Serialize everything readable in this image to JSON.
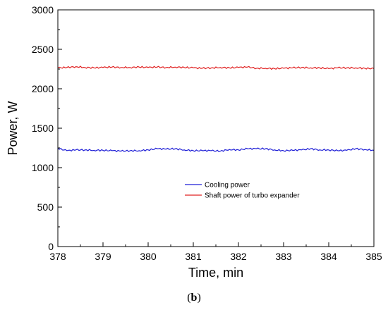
{
  "caption": {
    "open": "(",
    "letter": "b",
    "close": ")"
  },
  "chart_data": {
    "type": "line",
    "xlabel": "Time, min",
    "ylabel": "Power, W",
    "xlim": [
      378,
      385
    ],
    "ylim": [
      0,
      3000
    ],
    "xticks": [
      378,
      379,
      380,
      381,
      382,
      383,
      384,
      385
    ],
    "yticks": [
      0,
      500,
      1000,
      1500,
      2000,
      2500,
      3000
    ],
    "grid": false,
    "legend": "center-right",
    "series": [
      {
        "name": "Cooling power",
        "color": "#1f1fd6",
        "x": [
          378.0,
          378.2,
          378.4,
          378.6,
          378.8,
          379.0,
          379.2,
          379.4,
          379.6,
          379.8,
          380.0,
          380.2,
          380.4,
          380.6,
          380.8,
          381.0,
          381.2,
          381.4,
          381.6,
          381.8,
          382.0,
          382.2,
          382.4,
          382.6,
          382.8,
          383.0,
          383.2,
          383.4,
          383.6,
          383.8,
          384.0,
          384.2,
          384.4,
          384.6,
          384.8,
          385.0
        ],
        "y": [
          1245,
          1215,
          1225,
          1225,
          1220,
          1220,
          1215,
          1210,
          1215,
          1215,
          1225,
          1240,
          1235,
          1240,
          1225,
          1215,
          1215,
          1215,
          1210,
          1230,
          1225,
          1240,
          1240,
          1240,
          1225,
          1215,
          1220,
          1225,
          1240,
          1225,
          1225,
          1215,
          1220,
          1240,
          1230,
          1220
        ]
      },
      {
        "name": "Shaft power of turbo expander",
        "color": "#e02020",
        "x": [
          378.0,
          378.2,
          378.4,
          378.6,
          378.8,
          379.0,
          379.2,
          379.4,
          379.6,
          379.8,
          380.0,
          380.2,
          380.4,
          380.6,
          380.8,
          381.0,
          381.2,
          381.4,
          381.6,
          381.8,
          382.0,
          382.2,
          382.4,
          382.6,
          382.8,
          383.0,
          383.2,
          383.4,
          383.6,
          383.8,
          384.0,
          384.2,
          384.4,
          384.6,
          384.8,
          385.0
        ],
        "y": [
          2265,
          2270,
          2280,
          2270,
          2265,
          2270,
          2275,
          2270,
          2270,
          2275,
          2270,
          2275,
          2270,
          2275,
          2270,
          2265,
          2260,
          2265,
          2270,
          2265,
          2270,
          2275,
          2260,
          2260,
          2255,
          2260,
          2265,
          2270,
          2265,
          2265,
          2255,
          2265,
          2265,
          2265,
          2260,
          2255
        ]
      }
    ]
  }
}
